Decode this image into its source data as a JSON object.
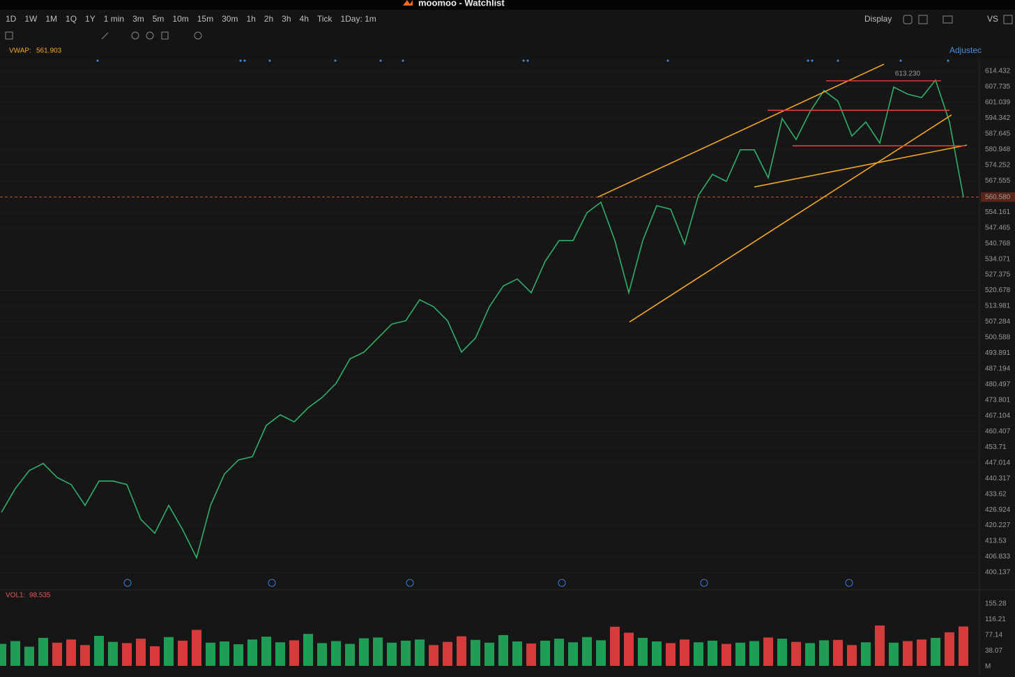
{
  "window": {
    "title": "moomoo - Watchlist"
  },
  "toolbar": {
    "periods": [
      "1D",
      "1W",
      "1M",
      "1Q",
      "1Y",
      "1 min",
      "3m",
      "5m",
      "10m",
      "15m",
      "30m",
      "1h",
      "2h",
      "3h",
      "4h",
      "Tick",
      "1Day: 1m"
    ],
    "display": "Display",
    "compare": "VS"
  },
  "indicator": {
    "name": "VWAP:",
    "value": 561.903,
    "adjusted": "Adjustec"
  },
  "chart_data": [
    {
      "type": "line",
      "color": "#2fb06a",
      "categories": [
        null,
        null,
        null,
        null,
        null,
        null,
        null,
        null,
        null,
        null,
        null,
        null,
        null,
        null,
        null,
        null,
        null,
        null,
        null,
        null,
        null,
        null,
        null,
        null,
        null,
        null,
        null,
        null,
        null,
        null,
        null,
        null,
        null,
        null,
        null,
        null,
        null,
        null,
        null,
        null,
        null,
        null,
        null,
        null,
        null,
        null,
        null,
        null,
        null,
        null,
        null,
        null,
        null,
        null,
        null,
        null,
        null,
        null,
        null,
        null,
        null,
        null,
        null,
        null,
        null,
        null,
        null,
        null,
        null,
        null
      ],
      "values": [
        425.8,
        436,
        443.7,
        446.7,
        440.7,
        437.7,
        428.8,
        439.2,
        439.2,
        437.7,
        422.8,
        416.9,
        428.8,
        418.4,
        406.4,
        428.8,
        442.2,
        448.2,
        449.6,
        463.0,
        467.5,
        464.5,
        470.5,
        474.9,
        480.9,
        491.4,
        494.3,
        500.3,
        506.3,
        507.7,
        516.7,
        513.7,
        507.7,
        494.3,
        500.3,
        513.7,
        522.6,
        525.6,
        519.7,
        533.1,
        542.0,
        542.0,
        553.9,
        558.4,
        542.0,
        519.7,
        542.0,
        556.9,
        555.4,
        540.5,
        561.4,
        570.3,
        567.3,
        580.8,
        580.8,
        568.8,
        594.2,
        585.2,
        597.1,
        606.1,
        601.6,
        586.7,
        592.7,
        583.7,
        607.6,
        604.6,
        603.1,
        610.6,
        592.7,
        560.6
      ],
      "ylim": [
        392.98,
        619.5
      ],
      "yticks": [
        614.432,
        607.735,
        601.039,
        594.342,
        587.645,
        580.948,
        574.252,
        567.555,
        554.161,
        547.465,
        540.768,
        534.071,
        527.375,
        520.678,
        513.981,
        507.284,
        500.588,
        493.891,
        487.194,
        480.497,
        473.801,
        467.104,
        460.407,
        453.71,
        447.014,
        440.317,
        433.62,
        426.924,
        420.227,
        413.53,
        406.833,
        400.137
      ],
      "last_price": {
        "value": 560.58,
        "label": "560.580"
      },
      "high_label": {
        "value": 613.23,
        "label": "613.230"
      },
      "trendlines": [
        {
          "color": "#f5a623",
          "x": [
            42.75,
            63.3
          ],
          "y": [
            560.5,
            617.4
          ]
        },
        {
          "color": "#f5a623",
          "x": [
            45.05,
            68.15
          ],
          "y": [
            507.2,
            595.7
          ]
        },
        {
          "color": "#f5a623",
          "x": [
            54,
            69.25
          ],
          "y": [
            564.9,
            582.8
          ]
        },
        {
          "color": "#e53935",
          "x": [
            59.15,
            67.4
          ],
          "y": [
            610.3,
            610.3
          ]
        },
        {
          "color": "#e53935",
          "x": [
            54.95,
            68
          ],
          "y": [
            597.7,
            597.7
          ]
        },
        {
          "color": "#e53935",
          "x": [
            56.75,
            69.15
          ],
          "y": [
            582.5,
            582.5
          ]
        }
      ]
    },
    {
      "type": "bar",
      "title": "VOL1:",
      "value": 98.535,
      "unit": "M",
      "up_color": "#1f9d55",
      "down_color": "#d63a3a",
      "values": [
        55,
        62,
        48,
        70,
        58,
        66,
        52,
        75,
        60,
        57,
        68,
        49,
        72,
        63,
        90,
        58,
        61,
        54,
        66,
        73,
        59,
        64,
        80,
        57,
        62,
        55,
        69,
        71,
        58,
        63,
        66,
        52,
        60,
        74,
        65,
        58,
        77,
        61,
        56,
        63,
        68,
        59,
        72,
        64,
        98,
        83,
        70,
        61,
        57,
        66,
        59,
        63,
        55,
        58,
        62,
        71,
        68,
        60,
        57,
        64,
        65,
        52,
        59,
        101,
        58,
        62,
        66,
        70,
        84,
        98.535
      ],
      "ylim": [
        0,
        183.3
      ],
      "yticks": [
        155.28,
        116.21,
        77.14,
        38.07
      ]
    }
  ]
}
